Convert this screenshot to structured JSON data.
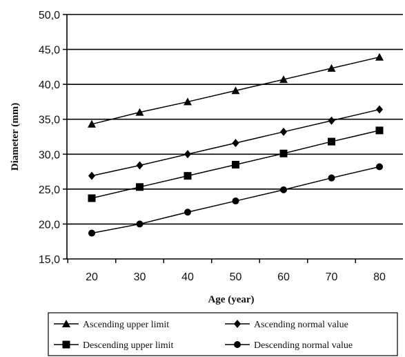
{
  "chart_data": {
    "type": "line",
    "title": "",
    "xlabel": "Age (year)",
    "ylabel": "Diameter (mm)",
    "x": [
      20,
      30,
      40,
      50,
      60,
      70,
      80
    ],
    "x_tick_labels": [
      "20",
      "30",
      "40",
      "50",
      "60",
      "70",
      "80"
    ],
    "ylim": [
      15,
      50
    ],
    "y_ticks": [
      15,
      20,
      25,
      30,
      35,
      40,
      45,
      50
    ],
    "y_tick_labels": [
      "15,0",
      "20,0",
      "25,0",
      "30,0",
      "35,0",
      "40,0",
      "45,0",
      "50,0"
    ],
    "grid": "horizontal",
    "legend_position": "bottom",
    "series": [
      {
        "name": "Ascending upper limit",
        "marker": "triangle",
        "values": [
          34.3,
          36.0,
          37.5,
          39.1,
          40.7,
          42.3,
          43.9
        ]
      },
      {
        "name": "Ascending normal value",
        "marker": "diamond",
        "values": [
          26.9,
          28.4,
          30.0,
          31.6,
          33.2,
          34.8,
          36.4
        ]
      },
      {
        "name": "Descending upper limit",
        "marker": "square",
        "values": [
          23.7,
          25.3,
          26.9,
          28.5,
          30.1,
          31.8,
          33.4
        ]
      },
      {
        "name": "Descending normal value",
        "marker": "circle",
        "values": [
          18.7,
          20.0,
          21.7,
          23.3,
          24.9,
          26.6,
          28.2
        ]
      }
    ]
  }
}
